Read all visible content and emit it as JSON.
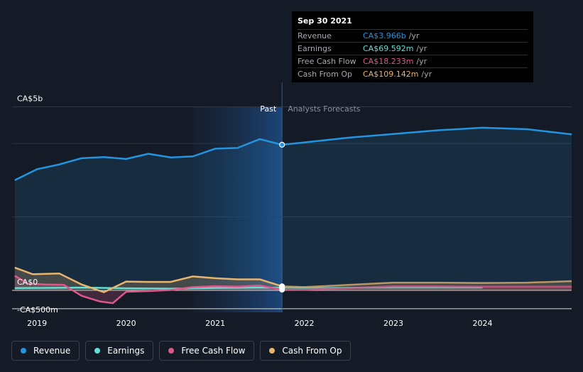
{
  "tooltip": {
    "date": "Sep 30 2021",
    "rows": [
      {
        "label": "Revenue",
        "value": "CA$3.966b",
        "unit": "/yr",
        "color": "#2394df"
      },
      {
        "label": "Earnings",
        "value": "CA$69.592m",
        "unit": "/yr",
        "color": "#62e0d3"
      },
      {
        "label": "Free Cash Flow",
        "value": "CA$18.233m",
        "unit": "/yr",
        "color": "#e0578b"
      },
      {
        "label": "Cash From Op",
        "value": "CA$109.142m",
        "unit": "/yr",
        "color": "#e9b46c"
      }
    ]
  },
  "chart_data": {
    "type": "line",
    "y_ticks": [
      {
        "label": "CA$5b",
        "value": 5000
      },
      {
        "label": "CA$0",
        "value": 0
      },
      {
        "label": "-CA$500m",
        "value": -500
      }
    ],
    "x_ticks": [
      {
        "label": "2019",
        "value": 2019.0
      },
      {
        "label": "2020",
        "value": 2020.0
      },
      {
        "label": "2021",
        "value": 2021.0
      },
      {
        "label": "2022",
        "value": 2022.0
      },
      {
        "label": "2023",
        "value": 2023.0
      },
      {
        "label": "2024",
        "value": 2024.0
      }
    ],
    "xlim": [
      2018.72,
      2025.0
    ],
    "ylim": [
      -600,
      5550
    ],
    "divider_x": 2021.75,
    "highlight_start": 2020.75,
    "past_label": "Past",
    "forecast_label": "Analysts Forecasts",
    "series": [
      {
        "name": "Revenue",
        "color": "#2394df",
        "area": true,
        "points": [
          [
            2018.75,
            3000
          ],
          [
            2019.0,
            3300
          ],
          [
            2019.25,
            3430
          ],
          [
            2019.5,
            3600
          ],
          [
            2019.75,
            3630
          ],
          [
            2020.0,
            3580
          ],
          [
            2020.25,
            3720
          ],
          [
            2020.5,
            3620
          ],
          [
            2020.75,
            3650
          ],
          [
            2021.0,
            3860
          ],
          [
            2021.25,
            3880
          ],
          [
            2021.5,
            4120
          ],
          [
            2021.75,
            3966
          ],
          [
            2022.0,
            4030
          ],
          [
            2022.5,
            4160
          ],
          [
            2023.0,
            4260
          ],
          [
            2023.5,
            4360
          ],
          [
            2024.0,
            4430
          ],
          [
            2024.5,
            4390
          ],
          [
            2025.0,
            4250
          ]
        ]
      },
      {
        "name": "Earnings",
        "color": "#62e0d3",
        "area": false,
        "points": [
          [
            2018.75,
            60
          ],
          [
            2019.0,
            65
          ],
          [
            2019.5,
            75
          ],
          [
            2020.0,
            55
          ],
          [
            2020.5,
            45
          ],
          [
            2021.0,
            65
          ],
          [
            2021.5,
            75
          ],
          [
            2021.75,
            69.592
          ],
          [
            2022.0,
            65
          ],
          [
            2023.0,
            75
          ],
          [
            2024.0,
            75
          ]
        ]
      },
      {
        "name": "Free Cash Flow",
        "color": "#e0578b",
        "area": true,
        "points": [
          [
            2018.75,
            400
          ],
          [
            2018.9,
            180
          ],
          [
            2019.1,
            160
          ],
          [
            2019.3,
            150
          ],
          [
            2019.5,
            -150
          ],
          [
            2019.7,
            -300
          ],
          [
            2019.85,
            -350
          ],
          [
            2020.0,
            -40
          ],
          [
            2020.25,
            -20
          ],
          [
            2020.5,
            10
          ],
          [
            2020.75,
            90
          ],
          [
            2021.0,
            110
          ],
          [
            2021.25,
            100
          ],
          [
            2021.5,
            130
          ],
          [
            2021.75,
            18.233
          ],
          [
            2022.0,
            15
          ],
          [
            2022.5,
            60
          ],
          [
            2023.0,
            110
          ],
          [
            2023.5,
            110
          ],
          [
            2024.0,
            100
          ],
          [
            2024.5,
            100
          ],
          [
            2025.0,
            100
          ]
        ]
      },
      {
        "name": "Cash From Op",
        "color": "#e9b46c",
        "area": true,
        "points": [
          [
            2018.75,
            620
          ],
          [
            2018.95,
            440
          ],
          [
            2019.25,
            460
          ],
          [
            2019.5,
            160
          ],
          [
            2019.75,
            -50
          ],
          [
            2020.0,
            240
          ],
          [
            2020.25,
            230
          ],
          [
            2020.5,
            230
          ],
          [
            2020.75,
            380
          ],
          [
            2021.0,
            330
          ],
          [
            2021.25,
            300
          ],
          [
            2021.5,
            300
          ],
          [
            2021.75,
            109.142
          ],
          [
            2022.0,
            90
          ],
          [
            2022.5,
            150
          ],
          [
            2023.0,
            210
          ],
          [
            2023.5,
            210
          ],
          [
            2024.0,
            200
          ],
          [
            2024.5,
            210
          ],
          [
            2025.0,
            250
          ]
        ]
      }
    ]
  },
  "legend": [
    {
      "label": "Revenue",
      "color": "#2394df"
    },
    {
      "label": "Earnings",
      "color": "#62e0d3"
    },
    {
      "label": "Free Cash Flow",
      "color": "#e0578b"
    },
    {
      "label": "Cash From Op",
      "color": "#e9b46c"
    }
  ]
}
